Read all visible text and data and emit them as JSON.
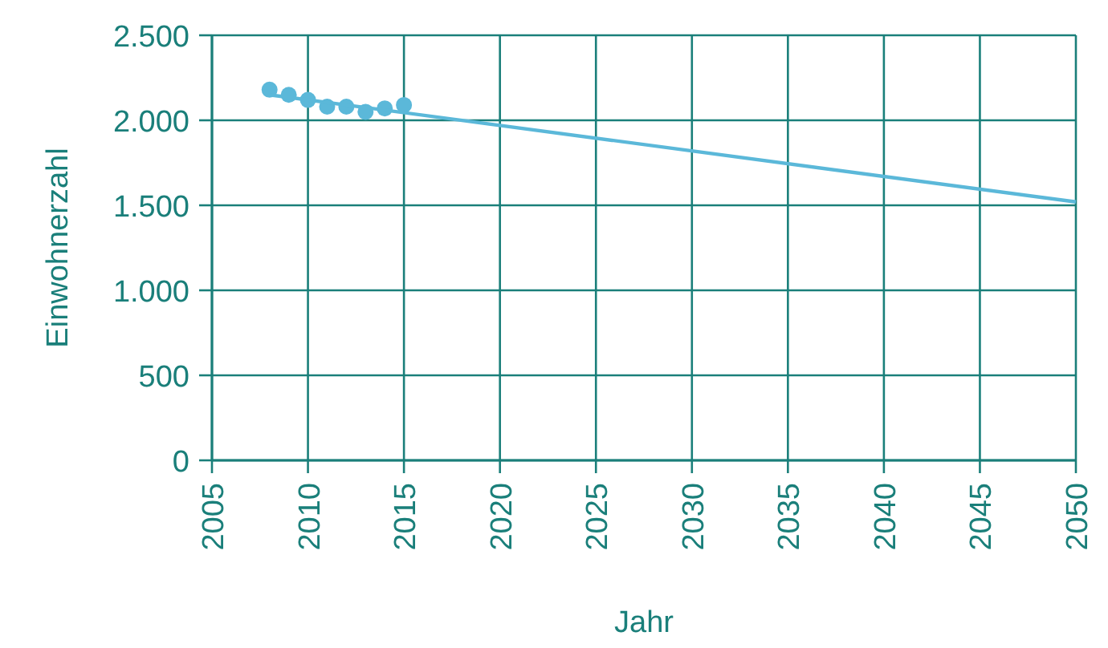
{
  "chart_data": {
    "type": "scatter",
    "xlabel": "Jahr",
    "ylabel": "Einwohnerzahl",
    "xlim": [
      2005,
      2050
    ],
    "xticks": [
      2005,
      2010,
      2015,
      2020,
      2025,
      2030,
      2035,
      2040,
      2045,
      2050
    ],
    "ylim": [
      0,
      2500
    ],
    "yticks": [
      0,
      {
        "value": 500,
        "label": "500"
      },
      {
        "value": 1000,
        "label": "1.000"
      },
      {
        "value": 1500,
        "label": "1.500"
      },
      {
        "value": 2000,
        "label": "2.000"
      },
      {
        "value": 2500,
        "label": "2.500"
      }
    ],
    "grid": true,
    "marker": "circle",
    "series": [
      {
        "color": "#5bb8d9",
        "x": [
          2008,
          2009,
          2010,
          2011,
          2012,
          2013,
          2014,
          2015
        ],
        "values": [
          2180,
          2150,
          2120,
          2080,
          2080,
          2050,
          2070,
          2090
        ]
      },
      {
        "type": "line",
        "color": "#5bb8d9",
        "x": [
          2008,
          2050
        ],
        "values": [
          2150,
          1520
        ],
        "marker": "none"
      }
    ]
  }
}
